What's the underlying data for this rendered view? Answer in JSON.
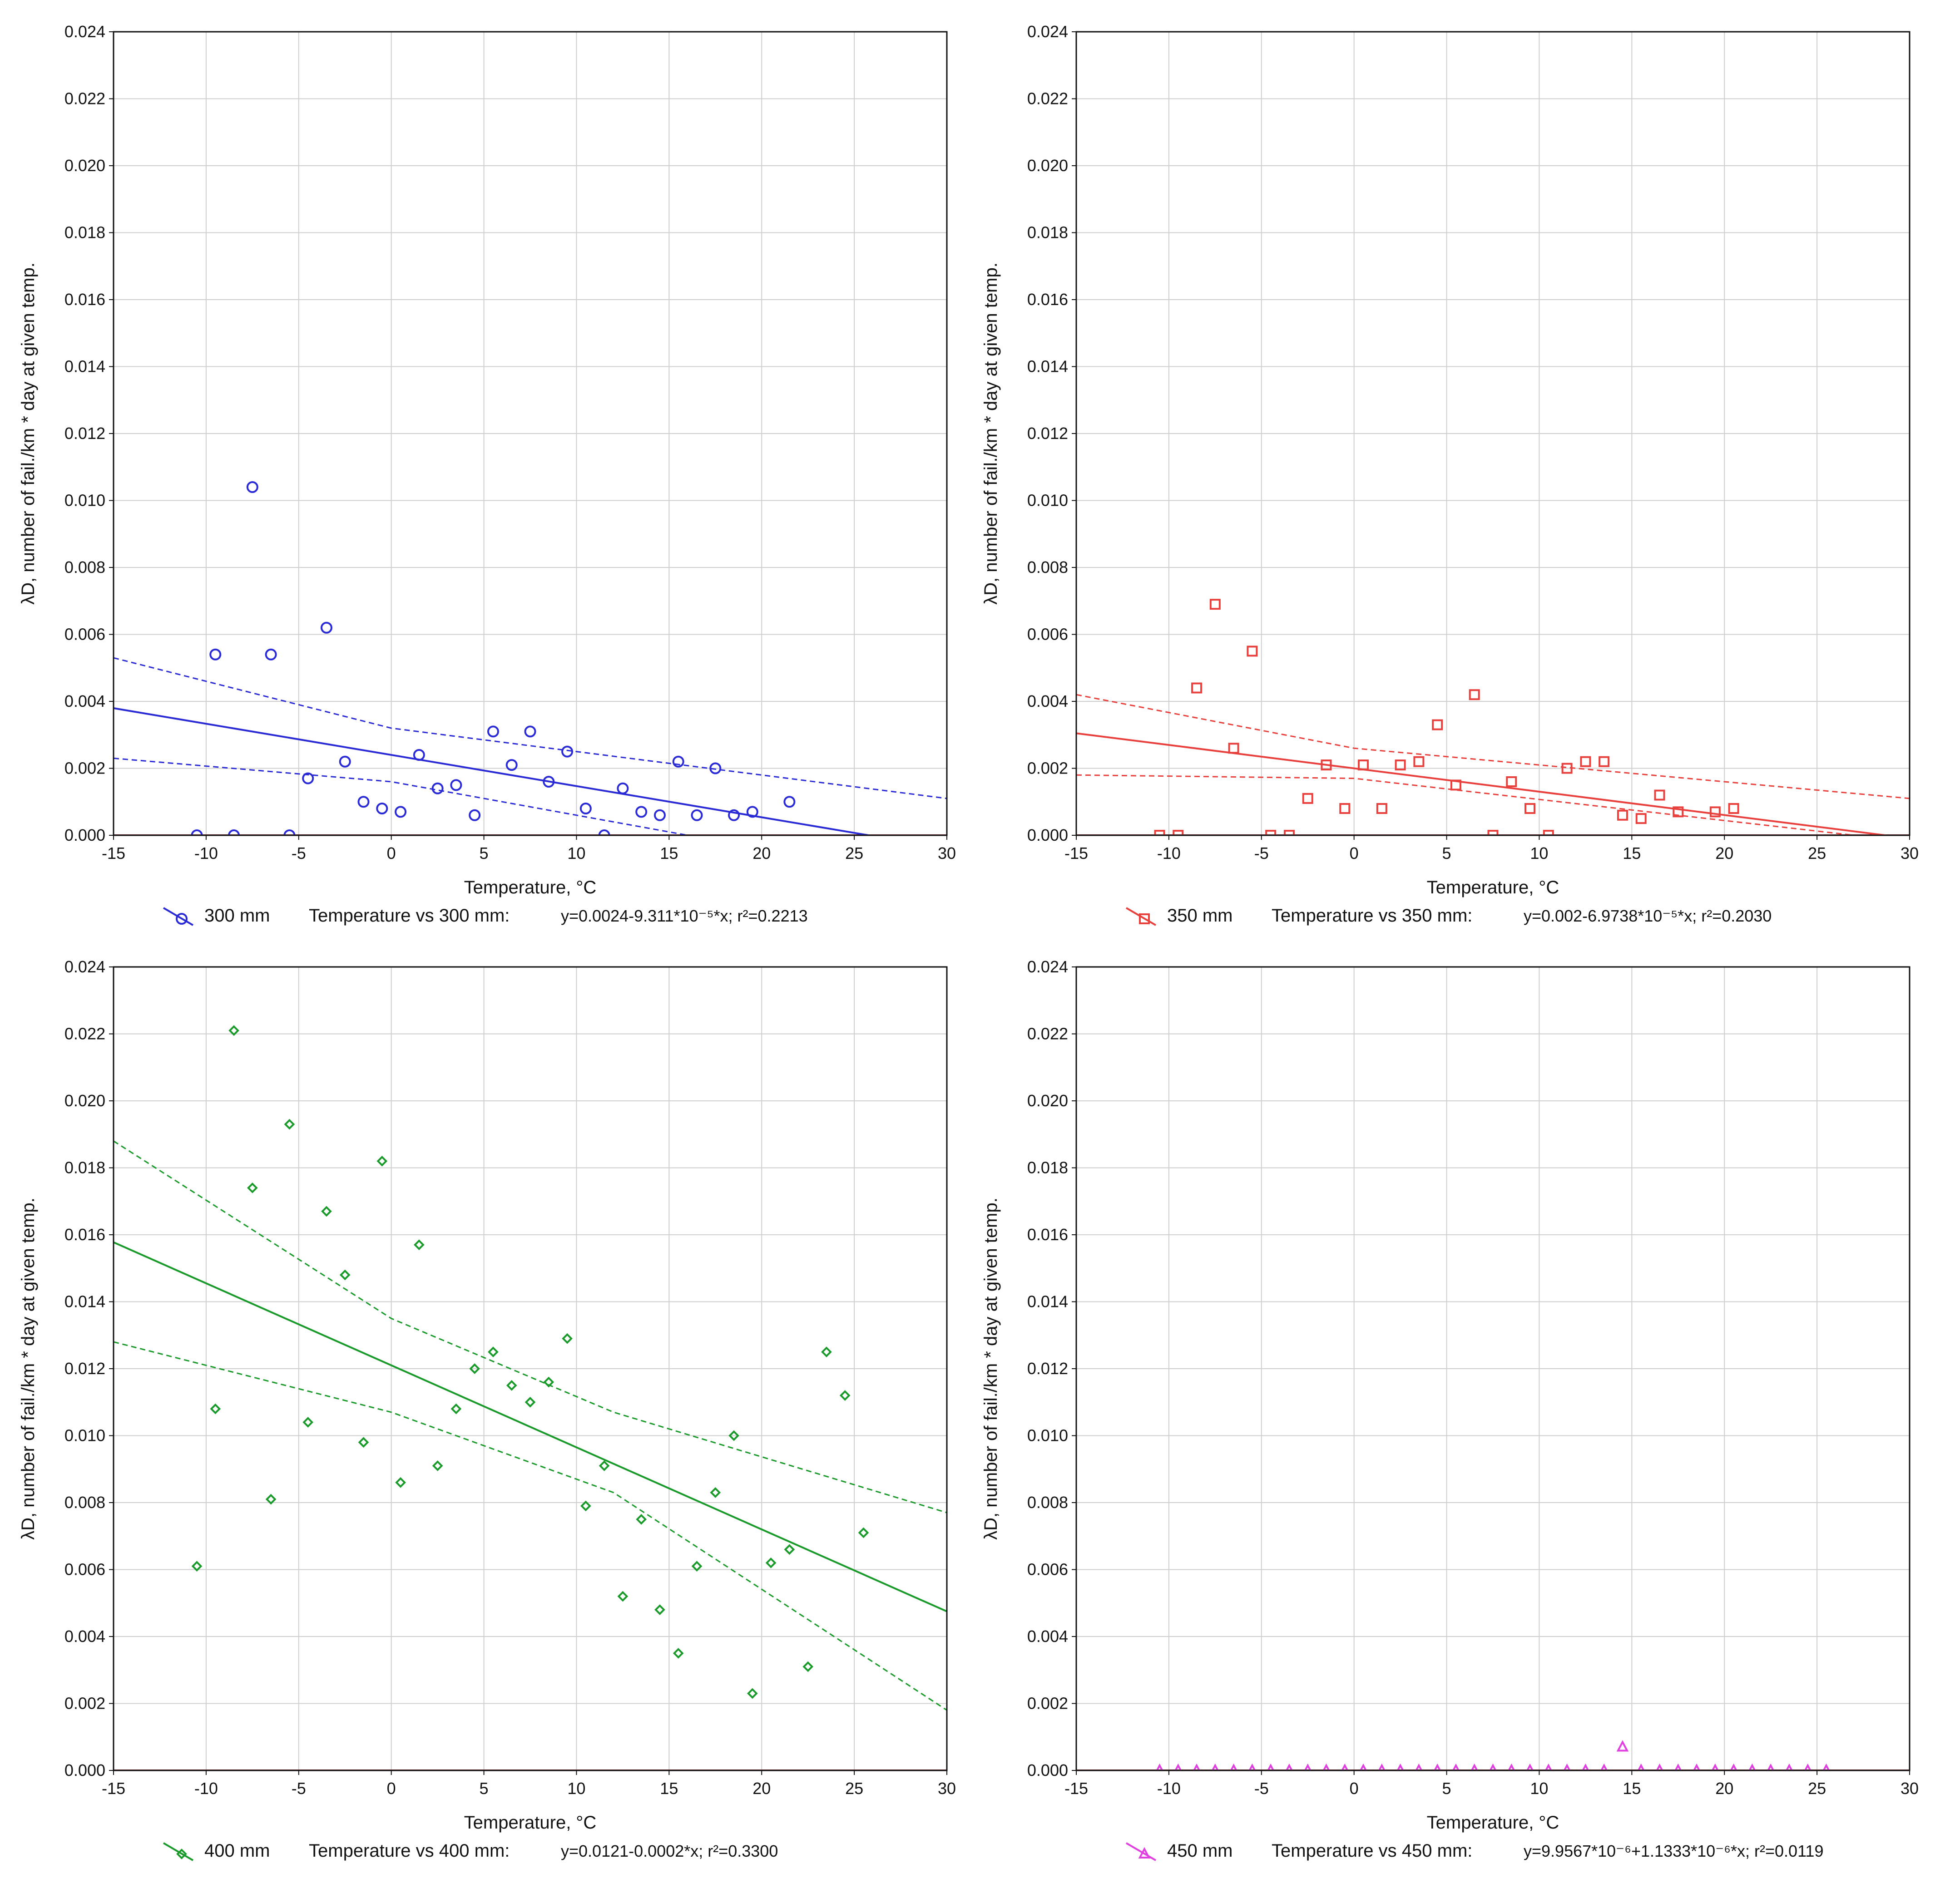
{
  "chart_data": [
    {
      "type": "scatter",
      "xlabel": "Temperature, °C",
      "ylabel": "λD, number of fail./km * day at given temp.",
      "xlim": [
        -15,
        30
      ],
      "ylim": [
        0,
        0.024
      ],
      "xticks": [
        -15,
        -10,
        -5,
        0,
        5,
        10,
        15,
        20,
        25,
        30
      ],
      "yticks": [
        "0.000",
        "0.002",
        "0.004",
        "0.006",
        "0.008",
        "0.010",
        "0.012",
        "0.014",
        "0.016",
        "0.018",
        "0.020",
        "0.022",
        "0.024"
      ],
      "grid": true,
      "marker": "circle",
      "color": "#2b2bd6",
      "legend": {
        "series_label": "300 mm",
        "fit_label": "Temperature vs 300 mm:",
        "equation": "y=0.0024-9.311*10⁻⁵*x; r²=0.2213"
      },
      "series": [
        {
          "name": "300 mm",
          "x": [
            -10.5,
            -9.5,
            -8.5,
            -7.5,
            -6.5,
            -5.5,
            -4.5,
            -3.5,
            -2.5,
            -1.5,
            -0.5,
            0.5,
            1.5,
            2.5,
            3.5,
            4.5,
            5.5,
            6.5,
            7.5,
            8.5,
            9.5,
            10.5,
            11.5,
            12.5,
            13.5,
            14.5,
            15.5,
            16.5,
            17.5,
            18.5,
            19.5,
            21.5
          ],
          "y": [
            0,
            0.0054,
            0,
            0.0104,
            0.0054,
            0,
            0.0017,
            0.0062,
            0.0022,
            0.001,
            0.0008,
            0.0007,
            0.0024,
            0.0014,
            0.0015,
            0.0006,
            0.0031,
            0.0021,
            0.0031,
            0.0016,
            0.0025,
            0.0008,
            0,
            0.0014,
            0.0007,
            0.0006,
            0.0022,
            0.0006,
            0.002,
            0.0006,
            0.0007,
            0.001
          ]
        }
      ],
      "fit": {
        "intercept": 0.0024,
        "slope": -9.311e-05,
        "band_upper": [
          [
            -15,
            0.0053
          ],
          [
            0,
            0.0032
          ],
          [
            30,
            0.0011
          ]
        ],
        "band_lower": [
          [
            -15,
            0.0023
          ],
          [
            0,
            0.0016
          ],
          [
            16,
            0.0
          ]
        ]
      }
    },
    {
      "type": "scatter",
      "xlabel": "Temperature, °C",
      "ylabel": "λD, number of fail./km * day at given temp.",
      "xlim": [
        -15,
        30
      ],
      "ylim": [
        0,
        0.024
      ],
      "xticks": [
        -15,
        -10,
        -5,
        0,
        5,
        10,
        15,
        20,
        25,
        30
      ],
      "yticks": [
        "0.000",
        "0.002",
        "0.004",
        "0.006",
        "0.008",
        "0.010",
        "0.012",
        "0.014",
        "0.016",
        "0.018",
        "0.020",
        "0.022",
        "0.024"
      ],
      "grid": true,
      "marker": "square",
      "color": "#e8403c",
      "legend": {
        "series_label": "350 mm",
        "fit_label": "Temperature vs 350 mm:",
        "equation": "y=0.002-6.9738*10⁻⁵*x; r²=0.2030"
      },
      "series": [
        {
          "name": "350 mm",
          "x": [
            -10.5,
            -9.5,
            -8.5,
            -7.5,
            -6.5,
            -5.5,
            -4.5,
            -3.5,
            -2.5,
            -1.5,
            -0.5,
            0.5,
            1.5,
            2.5,
            3.5,
            4.5,
            5.5,
            6.5,
            7.5,
            8.5,
            9.5,
            10.5,
            11.5,
            12.5,
            13.5,
            14.5,
            15.5,
            16.5,
            17.5,
            19.5,
            20.5
          ],
          "y": [
            0,
            0,
            0.0044,
            0.0069,
            0.0026,
            0.0055,
            0,
            0,
            0.0011,
            0.0021,
            0.0008,
            0.0021,
            0.0008,
            0.0021,
            0.0022,
            0.0033,
            0.0015,
            0.0042,
            0,
            0.0016,
            0.0008,
            0,
            0.002,
            0.0022,
            0.0022,
            0.0006,
            0.0005,
            0.0012,
            0.0007,
            0.0007,
            0.0008
          ]
        }
      ],
      "fit": {
        "intercept": 0.002,
        "slope": -6.9738e-05,
        "band_upper": [
          [
            -15,
            0.0042
          ],
          [
            0,
            0.0026
          ],
          [
            30,
            0.0011
          ]
        ],
        "band_lower": [
          [
            -15,
            0.0018
          ],
          [
            0,
            0.0017
          ],
          [
            27,
            0.0
          ]
        ]
      }
    },
    {
      "type": "scatter",
      "xlabel": "Temperature, °C",
      "ylabel": "λD, number of fail./km * day at given temp.",
      "xlim": [
        -15,
        30
      ],
      "ylim": [
        0,
        0.024
      ],
      "xticks": [
        -15,
        -10,
        -5,
        0,
        5,
        10,
        15,
        20,
        25,
        30
      ],
      "yticks": [
        "0.000",
        "0.002",
        "0.004",
        "0.006",
        "0.008",
        "0.010",
        "0.012",
        "0.014",
        "0.016",
        "0.018",
        "0.020",
        "0.022",
        "0.024"
      ],
      "grid": true,
      "marker": "diamond",
      "color": "#1a9a2a",
      "legend": {
        "series_label": "400 mm",
        "fit_label": "Temperature vs 400 mm:",
        "equation": "y=0.0121-0.0002*x; r²=0.3300"
      },
      "series": [
        {
          "name": "400 mm",
          "x": [
            -10.5,
            -9.5,
            -8.5,
            -7.5,
            -6.5,
            -5.5,
            -4.5,
            -3.5,
            -2.5,
            -1.5,
            -0.5,
            0.5,
            1.5,
            2.5,
            3.5,
            4.5,
            5.5,
            6.5,
            7.5,
            8.5,
            9.5,
            10.5,
            11.5,
            12.5,
            13.5,
            14.5,
            15.5,
            16.5,
            17.5,
            18.5,
            19.5,
            20.5,
            21.5,
            22.5,
            23.5,
            24.5,
            25.5
          ],
          "y": [
            0.0061,
            0.0108,
            0.0221,
            0.0174,
            0.0081,
            0.0193,
            0.0104,
            0.0167,
            0.0148,
            0.0098,
            0.0182,
            0.0086,
            0.0157,
            0.0091,
            0.0108,
            0.012,
            0.0125,
            0.0115,
            0.011,
            0.0116,
            0.0129,
            0.0079,
            0.0091,
            0.0052,
            0.0075,
            0.0048,
            0.0035,
            0.0061,
            0.0083,
            0.01,
            0.0023,
            0.0062,
            0.0066,
            0.0031,
            0.0125,
            0.0112,
            0.0071
          ]
        }
      ],
      "fit": {
        "intercept": 0.0121,
        "slope": -0.000245,
        "band_upper": [
          [
            -15,
            0.0188
          ],
          [
            0,
            0.0135
          ],
          [
            12,
            0.0107
          ],
          [
            30,
            0.0077
          ]
        ],
        "band_lower": [
          [
            -15,
            0.0128
          ],
          [
            0,
            0.0107
          ],
          [
            12,
            0.0083
          ],
          [
            30,
            0.0018
          ]
        ]
      }
    },
    {
      "type": "scatter",
      "xlabel": "Temperature, °C",
      "ylabel": "λD, number of fail./km * day at given temp.",
      "xlim": [
        -15,
        30
      ],
      "ylim": [
        0,
        0.024
      ],
      "xticks": [
        -15,
        -10,
        -5,
        0,
        5,
        10,
        15,
        20,
        25,
        30
      ],
      "yticks": [
        "0.000",
        "0.002",
        "0.004",
        "0.006",
        "0.008",
        "0.010",
        "0.012",
        "0.014",
        "0.016",
        "0.018",
        "0.020",
        "0.022",
        "0.024"
      ],
      "grid": true,
      "marker": "triangle",
      "color": "#e040e0",
      "legend": {
        "series_label": "450 mm",
        "fit_label": "Temperature vs 450 mm:",
        "equation": "y=9.9567*10⁻⁶+1.1333*10⁻⁶*x; r²=0.0119"
      },
      "series": [
        {
          "name": "450 mm",
          "x": [
            -10.5,
            -9.5,
            -8.5,
            -7.5,
            -6.5,
            -5.5,
            -4.5,
            -3.5,
            -2.5,
            -1.5,
            -0.5,
            0.5,
            1.5,
            2.5,
            3.5,
            4.5,
            5.5,
            6.5,
            7.5,
            8.5,
            9.5,
            10.5,
            11.5,
            12.5,
            13.5,
            14.5,
            15.5,
            16.5,
            17.5,
            18.5,
            19.5,
            20.5,
            21.5,
            22.5,
            23.5,
            24.5,
            25.5
          ],
          "y": [
            0,
            0,
            0,
            0,
            0,
            0,
            0,
            0,
            0,
            0,
            0,
            0,
            0,
            0,
            0,
            0,
            0,
            0,
            0,
            0,
            0,
            0,
            0,
            0,
            0,
            0.0007,
            0,
            0,
            0,
            0,
            0,
            0,
            0,
            0,
            0,
            0,
            0
          ]
        }
      ],
      "fit": null
    }
  ]
}
